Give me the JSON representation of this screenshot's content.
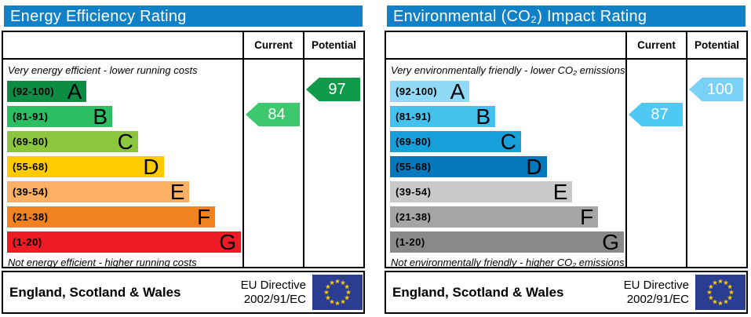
{
  "colors": {
    "header_blue": "#1181c7",
    "border_black": "#000000",
    "eu_flag_bg": "#2b3d90",
    "eu_flag_star": "#ffcc00"
  },
  "panels": [
    {
      "title": "Energy Efficiency Rating",
      "columns": {
        "current": "Current",
        "potential": "Potential"
      },
      "top_note": "Very energy efficient - lower running costs",
      "bottom_note": "Not energy efficient - higher running costs",
      "bands": [
        {
          "range": "(92-100)",
          "letter": "A",
          "color": "#0e8c43"
        },
        {
          "range": "(81-91)",
          "letter": "B",
          "color": "#2dbd62"
        },
        {
          "range": "(69-80)",
          "letter": "C",
          "color": "#8cc63f"
        },
        {
          "range": "(55-68)",
          "letter": "D",
          "color": "#fecb00"
        },
        {
          "range": "(39-54)",
          "letter": "E",
          "color": "#fbb064"
        },
        {
          "range": "(21-38)",
          "letter": "F",
          "color": "#f0821f"
        },
        {
          "range": "(1-20)",
          "letter": "G",
          "color": "#ed1c24"
        }
      ],
      "current": {
        "value": "84",
        "color": "#3ec86e",
        "row": 1
      },
      "potential": {
        "value": "97",
        "color": "#0f9a49",
        "row": 0
      },
      "footer": {
        "region": "England, Scotland & Wales",
        "directive_line1": "EU Directive",
        "directive_line2": "2002/91/EC"
      }
    },
    {
      "title": "Environmental (CO₂) Impact Rating",
      "columns": {
        "current": "Current",
        "potential": "Potential"
      },
      "top_note": "Very environmentally friendly - lower CO₂ emissions",
      "bottom_note": "Not environmentally friendly - higher CO₂ emissions",
      "bands": [
        {
          "range": "(92-100)",
          "letter": "A",
          "color": "#90d9f7"
        },
        {
          "range": "(81-91)",
          "letter": "B",
          "color": "#45c1ee"
        },
        {
          "range": "(69-80)",
          "letter": "C",
          "color": "#16a0d9"
        },
        {
          "range": "(55-68)",
          "letter": "D",
          "color": "#0579bb"
        },
        {
          "range": "(39-54)",
          "letter": "E",
          "color": "#c9c9c9"
        },
        {
          "range": "(21-38)",
          "letter": "F",
          "color": "#a5a5a5"
        },
        {
          "range": "(1-20)",
          "letter": "G",
          "color": "#898989"
        }
      ],
      "current": {
        "value": "87",
        "color": "#4ec9f3",
        "row": 1
      },
      "potential": {
        "value": "100",
        "color": "#79d2f5",
        "row": 0
      },
      "footer": {
        "region": "England, Scotland & Wales",
        "directive_line1": "EU Directive",
        "directive_line2": "2002/91/EC"
      }
    }
  ],
  "chart_data": [
    {
      "type": "bar",
      "title": "Energy Efficiency Rating",
      "categories": [
        "A",
        "B",
        "C",
        "D",
        "E",
        "F",
        "G"
      ],
      "band_ranges": [
        [
          92,
          100
        ],
        [
          81,
          91
        ],
        [
          69,
          80
        ],
        [
          55,
          68
        ],
        [
          39,
          54
        ],
        [
          21,
          38
        ],
        [
          1,
          20
        ]
      ],
      "scale": [
        1,
        100
      ],
      "series": [
        {
          "name": "Current",
          "value": 84,
          "band": "B"
        },
        {
          "name": "Potential",
          "value": 97,
          "band": "A"
        }
      ],
      "top_label": "Very energy efficient - lower running costs",
      "bottom_label": "Not energy efficient - higher running costs"
    },
    {
      "type": "bar",
      "title": "Environmental (CO₂) Impact Rating",
      "categories": [
        "A",
        "B",
        "C",
        "D",
        "E",
        "F",
        "G"
      ],
      "band_ranges": [
        [
          92,
          100
        ],
        [
          81,
          91
        ],
        [
          69,
          80
        ],
        [
          55,
          68
        ],
        [
          39,
          54
        ],
        [
          21,
          38
        ],
        [
          1,
          20
        ]
      ],
      "scale": [
        1,
        100
      ],
      "series": [
        {
          "name": "Current",
          "value": 87,
          "band": "B"
        },
        {
          "name": "Potential",
          "value": 100,
          "band": "A"
        }
      ],
      "top_label": "Very environmentally friendly - lower CO₂ emissions",
      "bottom_label": "Not environmentally friendly - higher CO₂ emissions"
    }
  ]
}
